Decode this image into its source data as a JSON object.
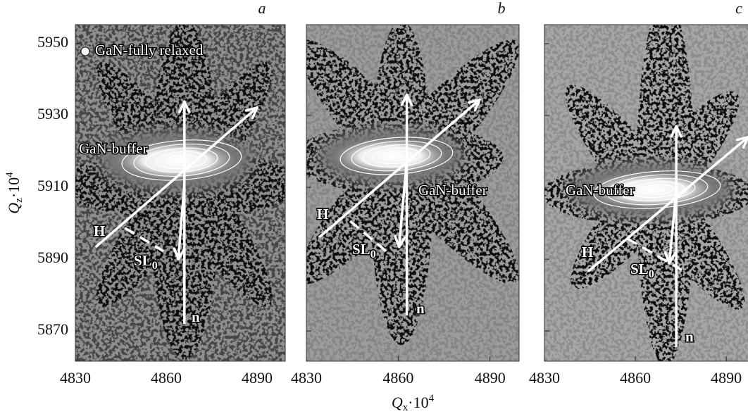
{
  "chart_data": [
    {
      "type": "map",
      "panel": "a",
      "xlim": [
        4830,
        4899.3
      ],
      "ylim": [
        5861.6,
        5955.3
      ],
      "xticks": [
        4830,
        4860,
        4890
      ],
      "yticks": [
        5950,
        5930,
        5910,
        5890,
        5870
      ],
      "ytick_labels": true,
      "y_label": {
        "main": "Q",
        "sub": "z",
        "rest": "·10",
        "sup": "4"
      },
      "legend": "GaN-fully relaxed",
      "annotation": "GaN-buffer",
      "arrows": [
        {
          "label": "n",
          "from": [
            4866,
            5872
          ],
          "to": [
            4866,
            5933.8
          ]
        },
        {
          "label": "H",
          "from": [
            4836.7,
            5893.4
          ],
          "to": [
            4890,
            5932.2
          ]
        },
        {
          "from": [
            4866,
            5911
          ],
          "to": [
            4864,
            5890
          ]
        },
        {
          "label": "SL",
          "label_sub": "0",
          "from": [
            4846.3,
            5898.7
          ],
          "to": [
            4859.1,
            5892.2
          ],
          "dashed": true
        }
      ]
    },
    {
      "type": "map",
      "panel": "b",
      "xlim": [
        4830,
        4899.5
      ],
      "ylim": [
        5861.6,
        5955.3
      ],
      "xticks": [
        4830,
        4860,
        4890
      ],
      "yticks": [
        5950,
        5930,
        5910,
        5890,
        5870
      ],
      "ytick_labels": false,
      "x_label": {
        "main": "Q",
        "sub": "x",
        "rest": "·10",
        "sup": "4"
      },
      "annotation": "GaN-buffer",
      "arrows": [
        {
          "label": "n",
          "from": [
            4862.8,
            5874.3
          ],
          "to": [
            4862.8,
            5935.8
          ]
        },
        {
          "label": "H",
          "from": [
            4834.2,
            5896.1
          ],
          "to": [
            4886.6,
            5934.4
          ]
        },
        {
          "from": [
            4862.8,
            5917.6
          ],
          "to": [
            4860.3,
            5893.4
          ]
        },
        {
          "label": "SL",
          "label_sub": "0",
          "from": [
            4844.3,
            5900.6
          ],
          "to": [
            4856.1,
            5892.2
          ],
          "dashed": true
        }
      ]
    },
    {
      "type": "map",
      "panel": "c",
      "xlim": [
        4830,
        4899.5
      ],
      "ylim": [
        5861.6,
        5955.3
      ],
      "xticks": [
        4830,
        4860,
        4890
      ],
      "yticks": [
        5950,
        5930,
        5910,
        5890,
        5870
      ],
      "ytick_labels": false,
      "annotation": "GaN-buffer",
      "arrows": [
        {
          "label": "n",
          "from": [
            4873.5,
            5865.5
          ],
          "to": [
            4873.5,
            5927
          ]
        },
        {
          "label": "H",
          "from": [
            4844.4,
            5886.6
          ],
          "to": [
            4897.2,
            5924
          ]
        },
        {
          "from": [
            4873.5,
            5909
          ],
          "to": [
            4871.2,
            5888.9
          ]
        },
        {
          "label": "SL",
          "label_sub": "0",
          "from": [
            4857.2,
            5895.8
          ],
          "to": [
            4875.3,
            5887
          ],
          "dashed": true
        }
      ]
    }
  ]
}
